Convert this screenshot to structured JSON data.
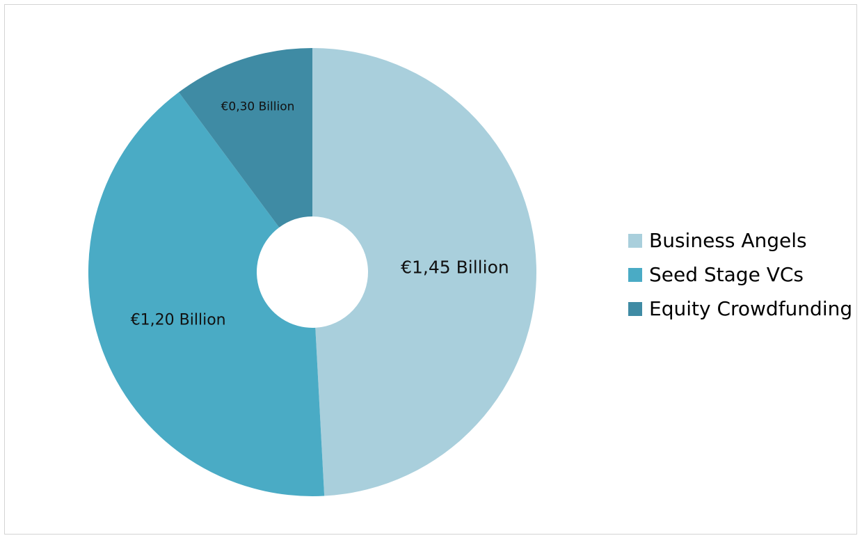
{
  "chart_data": {
    "type": "pie",
    "variant": "donut",
    "title": "",
    "categories": [
      "Business Angels",
      "Seed Stage VCs",
      "Equity Crowdfunding"
    ],
    "values": [
      1.45,
      1.2,
      0.3
    ],
    "unit": "€ Billion",
    "data_labels": [
      "€1,45 Billion",
      "€1,20 Billion",
      "€0,30 Billion"
    ],
    "colors": [
      "#a9cfdc",
      "#4aabc5",
      "#3f8ba4"
    ],
    "legend": {
      "position": "right",
      "entries": [
        "Business Angels",
        "Seed Stage VCs",
        "Equity Crowdfunding"
      ]
    },
    "start_angle": "12 o'clock",
    "direction": "clockwise"
  }
}
